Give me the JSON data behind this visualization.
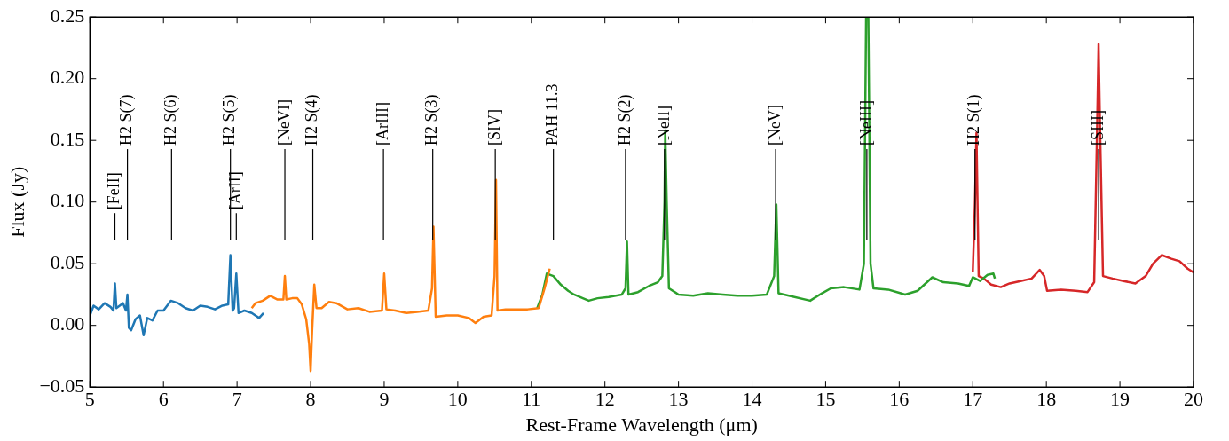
{
  "chart_data": {
    "type": "line",
    "xlabel": "Rest-Frame Wavelength (μm)",
    "ylabel": "Flux (Jy)",
    "xlim": [
      5,
      20
    ],
    "xticks": [
      5,
      6,
      7,
      8,
      9,
      10,
      11,
      12,
      13,
      14,
      15,
      16,
      17,
      18,
      19,
      20
    ],
    "ylim": [
      -0.05,
      0.25
    ],
    "yticks": [
      {
        "value": -0.05,
        "label": "−0.05"
      },
      {
        "value": 0,
        "label": "0.00"
      },
      0.05,
      {
        "value": 0.1,
        "label": "0.10"
      },
      0.15,
      {
        "value": 0.2,
        "label": "0.20"
      },
      0.25
    ],
    "grid": false,
    "legend": false,
    "series": [
      {
        "color": "#1f77b4",
        "x": [
          5.0,
          5.05,
          5.12,
          5.2,
          5.28,
          5.32,
          5.34,
          5.36,
          5.45,
          5.49,
          5.51,
          5.53,
          5.56,
          5.62,
          5.68,
          5.73,
          5.78,
          5.85,
          5.92,
          6.0,
          6.1,
          6.2,
          6.3,
          6.4,
          6.5,
          6.6,
          6.7,
          6.8,
          6.88,
          6.91,
          6.94,
          6.96,
          6.99,
          7.02,
          7.1,
          7.2,
          7.3,
          7.36
        ],
        "values": [
          0.008,
          0.016,
          0.013,
          0.018,
          0.015,
          0.012,
          0.034,
          0.014,
          0.018,
          0.012,
          0.025,
          -0.002,
          -0.004,
          0.005,
          0.008,
          -0.008,
          0.006,
          0.004,
          0.012,
          0.012,
          0.02,
          0.018,
          0.014,
          0.012,
          0.016,
          0.015,
          0.013,
          0.016,
          0.017,
          0.057,
          0.012,
          0.014,
          0.042,
          0.01,
          0.012,
          0.01,
          0.006,
          0.01
        ]
      },
      {
        "color": "#ff7f0e",
        "x": [
          7.2,
          7.25,
          7.35,
          7.45,
          7.55,
          7.63,
          7.65,
          7.67,
          7.75,
          7.82,
          7.88,
          7.94,
          7.98,
          8.0,
          8.02,
          8.05,
          8.08,
          8.15,
          8.25,
          8.35,
          8.5,
          8.65,
          8.8,
          8.97,
          9.0,
          9.03,
          9.15,
          9.3,
          9.45,
          9.6,
          9.65,
          9.67,
          9.7,
          9.85,
          10.0,
          10.15,
          10.24,
          10.35,
          10.46,
          10.5,
          10.52,
          10.54,
          10.65,
          10.8,
          10.95,
          11.1,
          11.18,
          11.25
        ],
        "values": [
          0.014,
          0.018,
          0.02,
          0.024,
          0.021,
          0.021,
          0.04,
          0.021,
          0.022,
          0.022,
          0.017,
          0.005,
          -0.015,
          -0.037,
          -0.005,
          0.033,
          0.014,
          0.014,
          0.019,
          0.018,
          0.013,
          0.014,
          0.011,
          0.012,
          0.042,
          0.013,
          0.012,
          0.01,
          0.011,
          0.012,
          0.03,
          0.08,
          0.007,
          0.008,
          0.008,
          0.006,
          0.002,
          0.007,
          0.008,
          0.04,
          0.118,
          0.012,
          0.013,
          0.013,
          0.013,
          0.014,
          0.03,
          0.046
        ]
      },
      {
        "color": "#2ca02c",
        "x": [
          11.08,
          11.15,
          11.21,
          11.3,
          11.4,
          11.5,
          11.58,
          11.7,
          11.78,
          11.9,
          12.05,
          12.23,
          12.28,
          12.3,
          12.32,
          12.45,
          12.6,
          12.72,
          12.78,
          12.81,
          12.82,
          12.84,
          12.87,
          13.0,
          13.2,
          13.4,
          13.6,
          13.8,
          14.0,
          14.2,
          14.3,
          14.33,
          14.36,
          14.5,
          14.79,
          14.95,
          15.07,
          15.25,
          15.46,
          15.52,
          15.55,
          15.58,
          15.61,
          15.65,
          15.85,
          16.08,
          16.25,
          16.45,
          16.6,
          16.8,
          16.95,
          17.0,
          17.1,
          17.2,
          17.28,
          17.3
        ],
        "values": [
          0.014,
          0.025,
          0.042,
          0.04,
          0.033,
          0.028,
          0.025,
          0.022,
          0.02,
          0.022,
          0.023,
          0.025,
          0.03,
          0.068,
          0.025,
          0.027,
          0.032,
          0.035,
          0.04,
          0.1,
          0.158,
          0.1,
          0.03,
          0.025,
          0.024,
          0.026,
          0.025,
          0.024,
          0.024,
          0.025,
          0.04,
          0.098,
          0.026,
          0.024,
          0.02,
          0.026,
          0.03,
          0.031,
          0.029,
          0.05,
          0.25,
          0.25,
          0.05,
          0.03,
          0.029,
          0.025,
          0.028,
          0.039,
          0.035,
          0.034,
          0.032,
          0.039,
          0.036,
          0.041,
          0.042,
          0.038
        ]
      },
      {
        "color": "#d62728",
        "x": [
          17.0,
          17.03,
          17.05,
          17.08,
          17.15,
          17.25,
          17.38,
          17.5,
          17.65,
          17.8,
          17.91,
          17.97,
          18.01,
          18.2,
          18.4,
          18.56,
          18.65,
          18.69,
          18.71,
          18.73,
          18.77,
          18.9,
          19.05,
          19.21,
          19.35,
          19.45,
          19.57,
          19.7,
          19.81,
          19.92,
          20.0
        ],
        "values": [
          0.043,
          0.1,
          0.156,
          0.04,
          0.038,
          0.033,
          0.031,
          0.034,
          0.036,
          0.038,
          0.045,
          0.04,
          0.028,
          0.029,
          0.028,
          0.027,
          0.035,
          0.16,
          0.228,
          0.16,
          0.04,
          0.038,
          0.036,
          0.034,
          0.04,
          0.05,
          0.057,
          0.054,
          0.052,
          0.046,
          0.043
        ]
      }
    ],
    "ref_lines": [
      {
        "axis": "x",
        "value": 5.34,
        "label": "[FeII]",
        "color": "#000000"
      },
      {
        "axis": "x",
        "value": 5.51,
        "label": "H2 S(7)",
        "color": "#000000"
      },
      {
        "axis": "x",
        "value": 6.11,
        "label": "H2 S(6)",
        "color": "#000000"
      },
      {
        "axis": "x",
        "value": 6.91,
        "label": "H2 S(5)",
        "color": "#000000"
      },
      {
        "axis": "x",
        "value": 6.99,
        "label": "[ArII]",
        "color": "#000000"
      },
      {
        "axis": "x",
        "value": 7.65,
        "label": "[NeVI]",
        "color": "#000000"
      },
      {
        "axis": "x",
        "value": 8.03,
        "label": "H2 S(4)",
        "color": "#000000"
      },
      {
        "axis": "x",
        "value": 8.99,
        "label": "[ArIII]",
        "color": "#000000"
      },
      {
        "axis": "x",
        "value": 9.66,
        "label": "H2 S(3)",
        "color": "#000000"
      },
      {
        "axis": "x",
        "value": 10.51,
        "label": "[SIV]",
        "color": "#000000"
      },
      {
        "axis": "x",
        "value": 11.3,
        "label": "PAH 11.3",
        "color": "#000000"
      },
      {
        "axis": "x",
        "value": 12.28,
        "label": "H2 S(2)",
        "color": "#000000"
      },
      {
        "axis": "x",
        "value": 12.81,
        "label": "[NeII]",
        "color": "#000000"
      },
      {
        "axis": "x",
        "value": 14.32,
        "label": "[NeV]",
        "color": "#000000"
      },
      {
        "axis": "x",
        "value": 15.56,
        "label": "[NeIII]",
        "color": "#000000"
      },
      {
        "axis": "x",
        "value": 17.03,
        "label": "H2 S(1)",
        "color": "#000000"
      },
      {
        "axis": "x",
        "value": 18.71,
        "label": "[SIII]",
        "color": "#000000"
      }
    ]
  }
}
